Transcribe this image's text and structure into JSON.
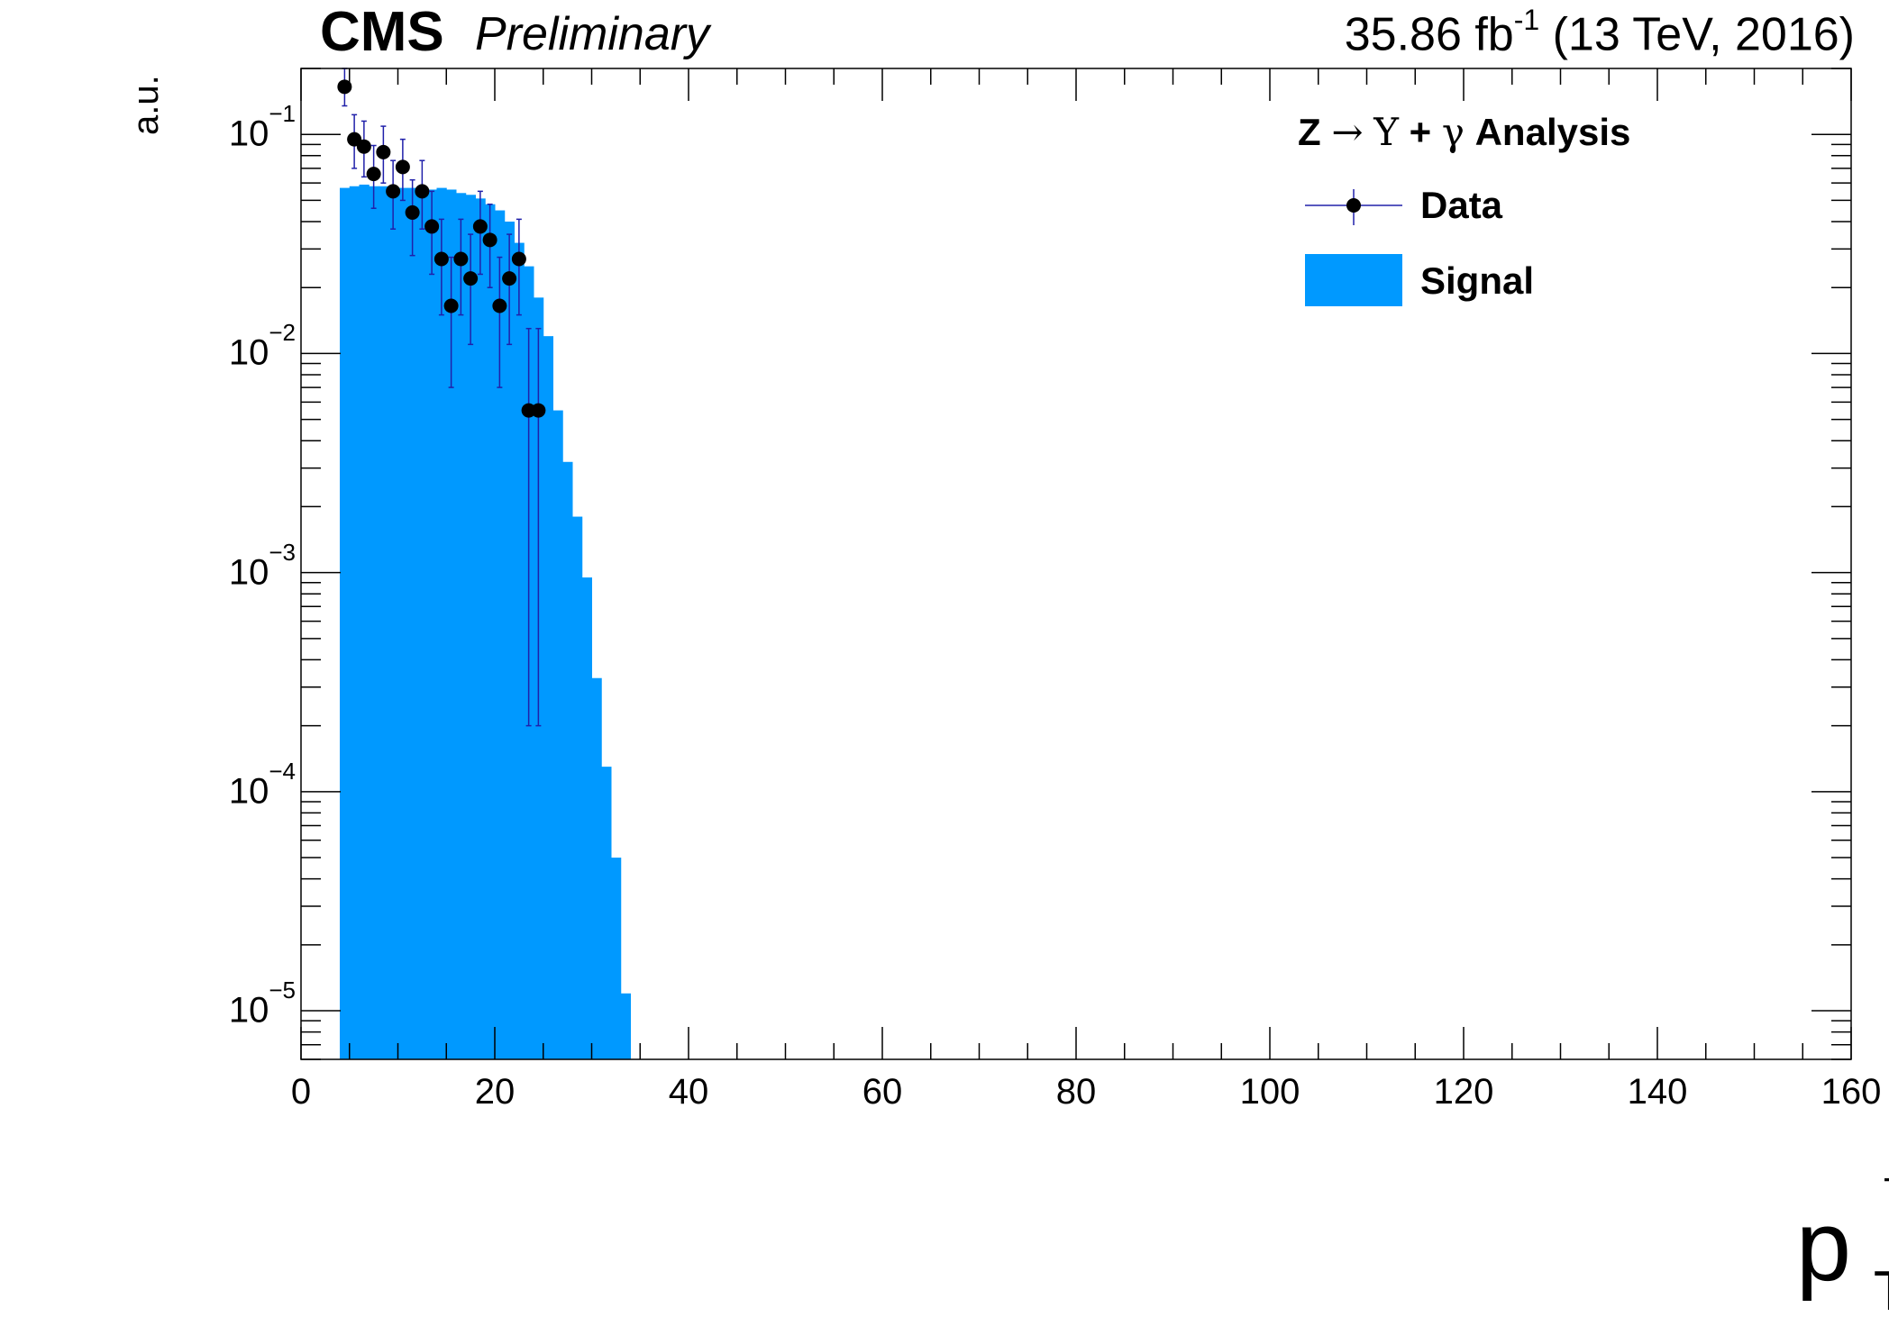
{
  "header": {
    "experiment": "CMS",
    "status": "Preliminary",
    "lumi_value": "35.86 fb",
    "lumi_exp": "-1",
    "lumi_rest": " (13 TeV, 2016)"
  },
  "legend": {
    "title_z": "Z",
    "title_arrow": "→",
    "title_upsilon": "Υ",
    "title_plus": "+",
    "title_gamma": "γ",
    "title_rest": "Analysis",
    "entries": [
      "Data",
      "Signal"
    ]
  },
  "axes": {
    "ylabel": "a.u.",
    "xlabel_main": "p",
    "xlabel_sup": "μ",
    "xlabel_sub": "T",
    "x_ticks": [
      "0",
      "20",
      "40",
      "60",
      "80",
      "100",
      "120",
      "140",
      "160"
    ],
    "y_ticks": [
      {
        "base": "10",
        "exp": "−1"
      },
      {
        "base": "10",
        "exp": "−2"
      },
      {
        "base": "10",
        "exp": "−3"
      },
      {
        "base": "10",
        "exp": "−4"
      },
      {
        "base": "10",
        "exp": "−5"
      }
    ]
  },
  "colors": {
    "signal": "#0099ff",
    "data_marker": "#000000",
    "error_bar": "#2020aa"
  },
  "chart_data": {
    "type": "bar",
    "xlabel": "p_T^μ",
    "ylabel": "a.u.",
    "xlim": [
      0,
      160
    ],
    "ylim": [
      6e-06,
      0.2
    ],
    "y_scale": "log",
    "grid": false,
    "legend_position": "top-right",
    "series": [
      {
        "name": "Signal",
        "kind": "histogram",
        "bin_width": 1,
        "x": [
          4,
          5,
          6,
          7,
          8,
          9,
          10,
          11,
          12,
          13,
          14,
          15,
          16,
          17,
          18,
          19,
          20,
          21,
          22,
          23,
          24,
          25,
          26,
          27,
          28,
          29,
          30,
          31,
          32,
          33
        ],
        "values": [
          0.057,
          0.058,
          0.059,
          0.058,
          0.058,
          0.057,
          0.057,
          0.057,
          0.057,
          0.056,
          0.057,
          0.056,
          0.054,
          0.053,
          0.051,
          0.048,
          0.045,
          0.04,
          0.032,
          0.025,
          0.018,
          0.012,
          0.0055,
          0.0032,
          0.0018,
          0.00095,
          0.00033,
          0.00013,
          5e-05,
          1.2e-05
        ]
      },
      {
        "name": "Data",
        "kind": "points",
        "x": [
          4.5,
          5.5,
          6.5,
          7.5,
          8.5,
          9.5,
          10.5,
          11.5,
          12.5,
          13.5,
          14.5,
          15.5,
          16.5,
          17.5,
          18.5,
          19.5,
          20.5,
          21.5,
          22.5,
          23.5,
          24.5
        ],
        "values": [
          0.165,
          0.095,
          0.088,
          0.066,
          0.083,
          0.055,
          0.071,
          0.044,
          0.055,
          0.038,
          0.027,
          0.0165,
          0.027,
          0.022,
          0.038,
          0.033,
          0.0165,
          0.022,
          0.027,
          0.0055,
          0.0055
        ],
        "err_low": [
          0.03,
          0.025,
          0.024,
          0.02,
          0.023,
          0.018,
          0.021,
          0.016,
          0.018,
          0.015,
          0.012,
          0.0095,
          0.012,
          0.011,
          0.015,
          0.013,
          0.0095,
          0.011,
          0.012,
          0.0053,
          0.0053
        ],
        "err_high": [
          0.035,
          0.028,
          0.027,
          0.023,
          0.026,
          0.021,
          0.024,
          0.018,
          0.021,
          0.017,
          0.014,
          0.011,
          0.014,
          0.013,
          0.017,
          0.015,
          0.011,
          0.013,
          0.014,
          0.0075,
          0.0075
        ]
      }
    ]
  }
}
